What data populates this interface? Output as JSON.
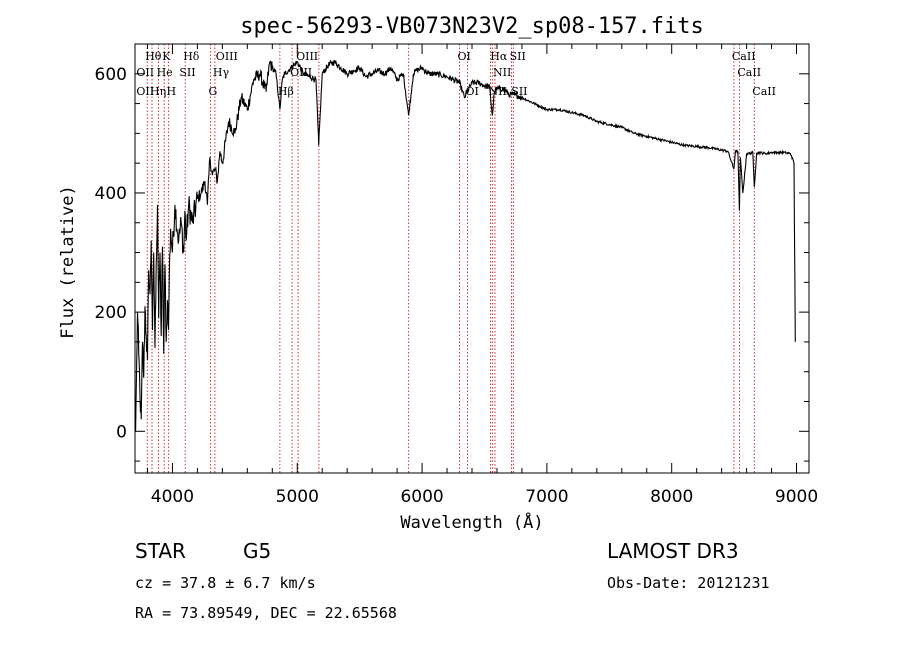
{
  "chart_data": {
    "type": "line",
    "title": "spec-56293-VB073N23V2_sp08-157.fits",
    "xlabel": "Wavelength (Å)",
    "ylabel": "Flux (relative)",
    "xlim": [
      3700,
      9100
    ],
    "ylim": [
      -70,
      650
    ],
    "xticks": [
      4000,
      5000,
      6000,
      7000,
      8000,
      9000
    ],
    "xtick_labels": [
      "4000",
      "5000",
      "6000",
      "7000",
      "8000",
      "9000"
    ],
    "yticks": [
      0,
      200,
      400,
      600
    ],
    "ytick_labels": [
      "0",
      "200",
      "400",
      "600"
    ],
    "series": [
      {
        "name": "flux",
        "x": [
          3705,
          3712,
          3720,
          3730,
          3740,
          3750,
          3760,
          3770,
          3780,
          3790,
          3800,
          3810,
          3820,
          3830,
          3840,
          3850,
          3860,
          3870,
          3880,
          3890,
          3900,
          3910,
          3920,
          3930,
          3940,
          3950,
          3960,
          3968,
          3975,
          3985,
          4000,
          4020,
          4050,
          4070,
          4090,
          4100,
          4110,
          4130,
          4160,
          4200,
          4230,
          4260,
          4280,
          4300,
          4320,
          4340,
          4360,
          4380,
          4400,
          4450,
          4500,
          4550,
          4600,
          4650,
          4700,
          4750,
          4780,
          4800,
          4830,
          4861,
          4880,
          4900,
          4950,
          5000,
          5050,
          5100,
          5150,
          5172,
          5200,
          5250,
          5300,
          5350,
          5400,
          5450,
          5500,
          5550,
          5600,
          5650,
          5700,
          5750,
          5800,
          5850,
          5892,
          5930,
          5950,
          6000,
          6050,
          6100,
          6150,
          6200,
          6250,
          6300,
          6340,
          6400,
          6450,
          6500,
          6540,
          6563,
          6580,
          6600,
          6650,
          6700,
          6750,
          6800,
          6850,
          6900,
          6950,
          7000,
          7100,
          7200,
          7300,
          7400,
          7500,
          7600,
          7700,
          7800,
          7900,
          8000,
          8100,
          8200,
          8300,
          8400,
          8450,
          8498,
          8510,
          8530,
          8542,
          8550,
          8570,
          8600,
          8620,
          8650,
          8662,
          8680,
          8700,
          8750,
          8800,
          8850,
          8900,
          8950,
          8960,
          8980,
          8990
        ],
        "y": [
          0,
          100,
          200,
          130,
          60,
          20,
          150,
          90,
          210,
          160,
          120,
          270,
          230,
          320,
          170,
          300,
          140,
          280,
          380,
          190,
          300,
          160,
          310,
          130,
          280,
          150,
          220,
          170,
          260,
          340,
          300,
          380,
          320,
          350,
          300,
          370,
          320,
          380,
          350,
          390,
          400,
          420,
          380,
          460,
          430,
          440,
          420,
          470,
          450,
          520,
          500,
          560,
          540,
          590,
          600,
          570,
          620,
          610,
          600,
          540,
          590,
          600,
          610,
          620,
          600,
          595,
          590,
          480,
          600,
          615,
          620,
          610,
          600,
          605,
          610,
          595,
          600,
          605,
          600,
          610,
          590,
          600,
          530,
          600,
          605,
          610,
          600,
          600,
          598,
          595,
          590,
          585,
          560,
          585,
          585,
          580,
          578,
          530,
          570,
          575,
          575,
          565,
          565,
          560,
          555,
          550,
          545,
          540,
          540,
          535,
          530,
          520,
          515,
          510,
          500,
          495,
          490,
          485,
          480,
          478,
          476,
          472,
          470,
          440,
          470,
          470,
          370,
          460,
          400,
          465,
          466,
          468,
          410,
          466,
          468,
          466,
          468,
          468,
          468,
          466,
          462,
          450,
          150
        ]
      }
    ],
    "line_markers": [
      3798,
      3836,
      3889,
      3934,
      3970,
      4102,
      4305,
      4340,
      4861,
      4959,
      5007,
      5173,
      5893,
      6300,
      6364,
      6548,
      6563,
      6584,
      6717,
      6731,
      8498,
      8542,
      8662
    ],
    "line_labels": [
      {
        "text": "Hθ",
        "wl": 3798,
        "row": 0
      },
      {
        "text": "K",
        "wl": 3934,
        "row": 0
      },
      {
        "text": "Hδ",
        "wl": 4102,
        "row": 0
      },
      {
        "text": "OIII",
        "wl": 4363,
        "row": 0
      },
      {
        "text": "OIII",
        "wl": 5007,
        "row": 0
      },
      {
        "text": "OI",
        "wl": 6300,
        "row": 0
      },
      {
        "text": "Hα",
        "wl": 6563,
        "row": 0
      },
      {
        "text": "SII",
        "wl": 6717,
        "row": 0
      },
      {
        "text": "CaII",
        "wl": 8498,
        "row": 0
      },
      {
        "text": "OII",
        "wl": 3727,
        "row": 1
      },
      {
        "text": "He",
        "wl": 3889,
        "row": 1
      },
      {
        "text": "SII",
        "wl": 4072,
        "row": 1
      },
      {
        "text": "Hγ",
        "wl": 4340,
        "row": 1
      },
      {
        "text": "OIII",
        "wl": 4959,
        "row": 1
      },
      {
        "text": "NII",
        "wl": 6584,
        "row": 1
      },
      {
        "text": "CaII",
        "wl": 8542,
        "row": 1
      },
      {
        "text": "OII",
        "wl": 3727,
        "row": 2
      },
      {
        "text": "Hη",
        "wl": 3836,
        "row": 2
      },
      {
        "text": "H",
        "wl": 3968,
        "row": 2
      },
      {
        "text": "G",
        "wl": 4305,
        "row": 2
      },
      {
        "text": "Hβ",
        "wl": 4861,
        "row": 2
      },
      {
        "text": "OI",
        "wl": 6364,
        "row": 2
      },
      {
        "text": "NII",
        "wl": 6548,
        "row": 2
      },
      {
        "text": "SII",
        "wl": 6731,
        "row": 2
      },
      {
        "text": "CaII",
        "wl": 8662,
        "row": 2
      }
    ]
  },
  "info": {
    "class_label": "STAR",
    "subclass": "G5",
    "survey": "LAMOST DR3",
    "cz": "cz = 37.8 ± 6.7 km/s",
    "obs_date": "Obs-Date: 20121231",
    "coords": "RA =  73.89549, DEC =  22.65568"
  }
}
